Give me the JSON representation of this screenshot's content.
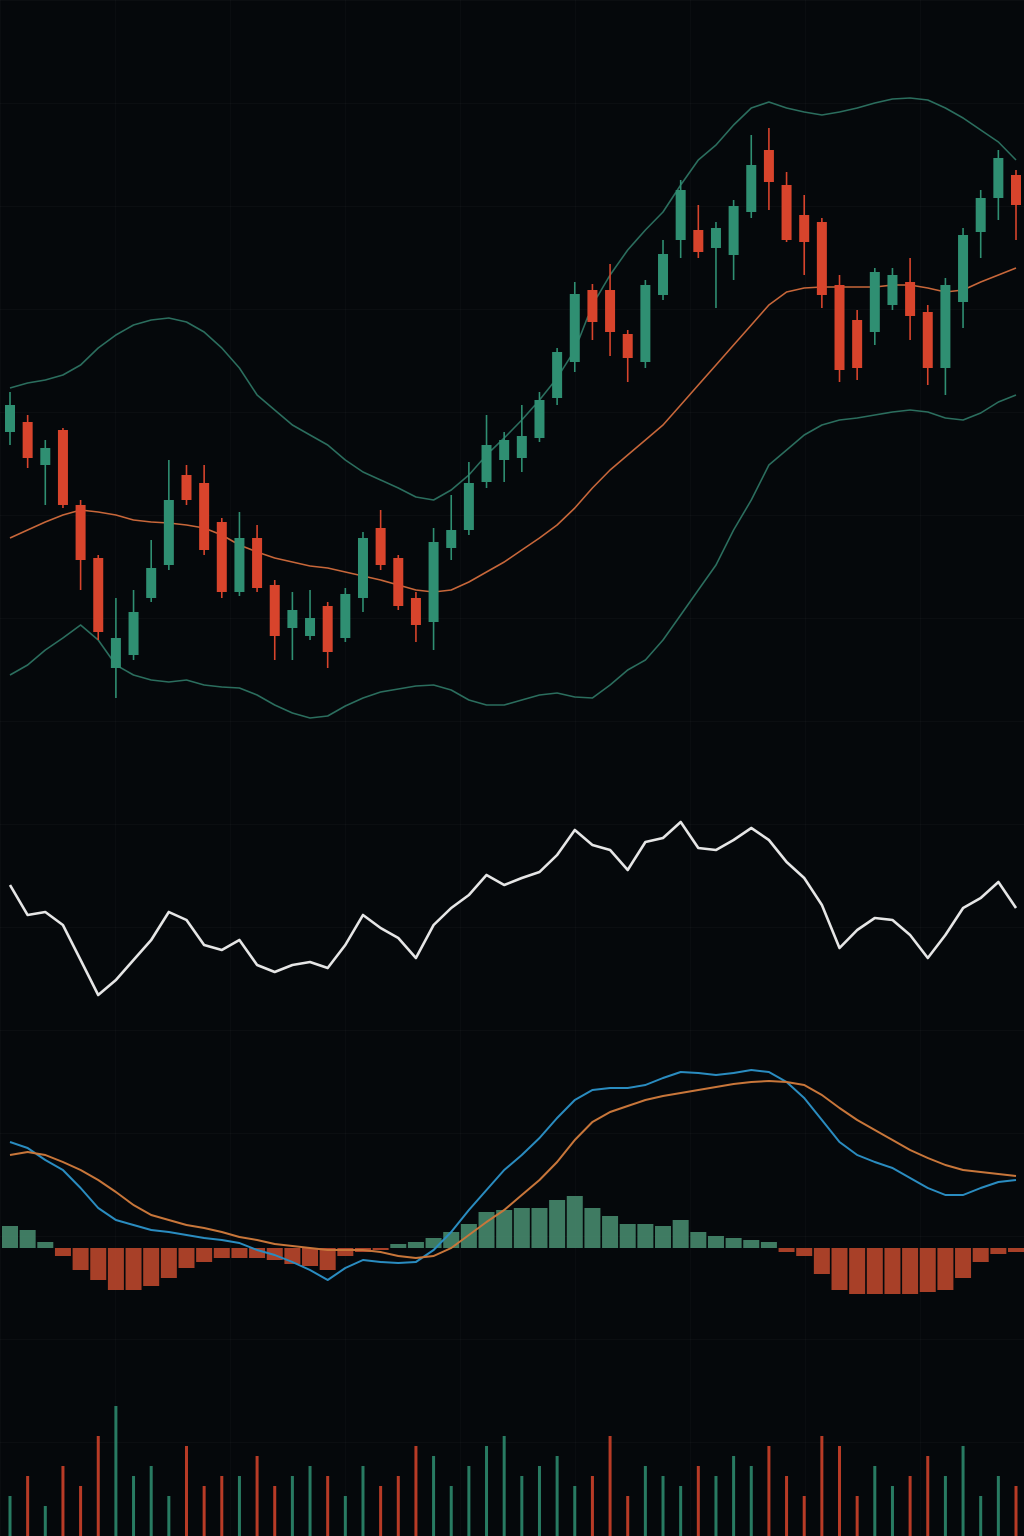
{
  "chart_data": [
    {
      "type": "candlestick",
      "up_color": "#2f8f72",
      "down_color": "#d8442c",
      "ylim": [
        0,
        700
      ],
      "open": [
        328,
        338,
        295,
        330,
        255,
        202,
        92,
        105,
        162,
        195,
        285,
        277,
        238,
        168,
        222,
        175,
        132,
        124,
        154,
        122,
        162,
        232,
        202,
        162,
        138,
        212,
        230,
        278,
        300,
        302,
        322,
        362,
        398,
        470,
        470,
        426,
        398,
        465,
        520,
        530,
        512,
        505,
        548,
        610,
        575,
        545,
        538,
        475,
        440,
        428,
        455,
        478,
        448,
        392,
        458,
        528,
        562,
        585
      ],
      "high": [
        368,
        345,
        320,
        332,
        260,
        205,
        162,
        170,
        220,
        300,
        295,
        295,
        242,
        248,
        235,
        180,
        168,
        170,
        158,
        172,
        228,
        250,
        205,
        168,
        232,
        265,
        298,
        345,
        328,
        355,
        368,
        412,
        478,
        476,
        496,
        430,
        480,
        520,
        580,
        555,
        538,
        560,
        625,
        632,
        588,
        565,
        542,
        485,
        450,
        492,
        492,
        502,
        455,
        482,
        532,
        570,
        610,
        590
      ],
      "low": [
        315,
        292,
        255,
        252,
        170,
        120,
        62,
        100,
        158,
        190,
        255,
        205,
        162,
        164,
        168,
        100,
        100,
        120,
        92,
        118,
        148,
        190,
        150,
        118,
        110,
        200,
        225,
        272,
        278,
        288,
        318,
        355,
        388,
        420,
        404,
        378,
        392,
        460,
        502,
        502,
        452,
        480,
        542,
        550,
        518,
        485,
        452,
        378,
        380,
        415,
        450,
        420,
        375,
        365,
        432,
        502,
        540,
        520
      ],
      "close": [
        355,
        302,
        312,
        255,
        200,
        128,
        122,
        148,
        192,
        260,
        260,
        210,
        168,
        222,
        172,
        124,
        150,
        142,
        108,
        166,
        222,
        195,
        154,
        135,
        218,
        230,
        277,
        315,
        320,
        324,
        360,
        408,
        466,
        438,
        428,
        402,
        475,
        506,
        570,
        508,
        532,
        554,
        595,
        578,
        520,
        518,
        465,
        390,
        392,
        488,
        485,
        444,
        392,
        475,
        525,
        562,
        602,
        555
      ],
      "series": [
        {
          "color": "#2b6e5e",
          "values": [
            372,
            377,
            380,
            385,
            395,
            412,
            425,
            435,
            440,
            442,
            438,
            428,
            412,
            392,
            365,
            350,
            335,
            325,
            315,
            300,
            288,
            280,
            272,
            263,
            260,
            270,
            285,
            305,
            322,
            340,
            360,
            382,
            410,
            455,
            485,
            510,
            530,
            548,
            575,
            600,
            615,
            635,
            652,
            658,
            652,
            648,
            645,
            648,
            652,
            657,
            661,
            662,
            660,
            652,
            642,
            630,
            618,
            600
          ]
        },
        {
          "color": "#c8673a",
          "values": [
            222,
            230,
            238,
            245,
            250,
            248,
            245,
            240,
            238,
            237,
            235,
            232,
            225,
            215,
            208,
            202,
            198,
            194,
            192,
            188,
            184,
            180,
            175,
            170,
            168,
            170,
            178,
            188,
            198,
            210,
            222,
            235,
            252,
            272,
            290,
            305,
            320,
            335,
            355,
            375,
            395,
            415,
            435,
            455,
            468,
            472,
            473,
            473,
            473,
            473,
            475,
            475,
            472,
            468,
            470,
            478,
            485,
            492
          ]
        },
        {
          "color": "#2b6e5e",
          "values": [
            85,
            95,
            110,
            122,
            135,
            120,
            95,
            85,
            80,
            78,
            80,
            75,
            73,
            72,
            65,
            55,
            47,
            42,
            44,
            54,
            62,
            68,
            71,
            74,
            75,
            70,
            60,
            55,
            55,
            60,
            65,
            67,
            63,
            62,
            75,
            90,
            100,
            120,
            145,
            170,
            195,
            230,
            260,
            295,
            310,
            325,
            335,
            340,
            342,
            345,
            348,
            350,
            348,
            342,
            340,
            347,
            358,
            365
          ]
        }
      ]
    },
    {
      "type": "line",
      "ylim": [
        0,
        260
      ],
      "series": [
        {
          "color": "#e6e6e6",
          "values": [
            155,
            125,
            128,
            115,
            80,
            45,
            60,
            80,
            100,
            128,
            120,
            95,
            90,
            100,
            75,
            68,
            75,
            78,
            72,
            95,
            125,
            112,
            102,
            82,
            115,
            132,
            145,
            165,
            155,
            162,
            168,
            185,
            210,
            195,
            190,
            170,
            198,
            202,
            218,
            192,
            190,
            200,
            212,
            200,
            178,
            162,
            135,
            92,
            110,
            122,
            120,
            105,
            82,
            105,
            132,
            142,
            158,
            132
          ]
        }
      ]
    },
    {
      "type": "macd",
      "ylim": [
        -72,
        188
      ],
      "pos_color": "#4a8f72",
      "neg_color": "#c64a2e",
      "values": [
        22,
        18,
        6,
        -8,
        -22,
        -32,
        -42,
        -42,
        -38,
        -30,
        -20,
        -14,
        -10,
        -10,
        -10,
        -12,
        -16,
        -18,
        -22,
        -8,
        -4,
        -2,
        4,
        6,
        10,
        16,
        24,
        36,
        38,
        40,
        40,
        48,
        52,
        40,
        32,
        24,
        24,
        22,
        28,
        16,
        12,
        10,
        8,
        6,
        -4,
        -8,
        -26,
        -42,
        -46,
        -46,
        -46,
        -46,
        -44,
        -42,
        -30,
        -14,
        -6,
        -4
      ],
      "series": [
        {
          "color": "#2a8cc0",
          "values": [
            106,
            100,
            88,
            78,
            60,
            40,
            28,
            23,
            18,
            16,
            13,
            10,
            8,
            5,
            -2,
            -7,
            -14,
            -22,
            -32,
            -20,
            -12,
            -14,
            -15,
            -14,
            -2,
            16,
            38,
            58,
            78,
            93,
            110,
            130,
            148,
            158,
            160,
            160,
            163,
            170,
            176,
            175,
            173,
            175,
            178,
            176,
            166,
            150,
            128,
            106,
            93,
            86,
            80,
            70,
            60,
            53,
            53,
            60,
            66,
            68
          ]
        },
        {
          "color": "#c8763a",
          "values": [
            93,
            96,
            93,
            86,
            78,
            68,
            56,
            43,
            33,
            28,
            23,
            20,
            16,
            11,
            8,
            4,
            2,
            0,
            -2,
            -2,
            -2,
            -4,
            -8,
            -10,
            -8,
            0,
            13,
            26,
            38,
            53,
            68,
            86,
            108,
            126,
            136,
            142,
            148,
            152,
            155,
            158,
            161,
            164,
            166,
            167,
            166,
            163,
            153,
            140,
            128,
            118,
            108,
            98,
            90,
            83,
            78,
            76,
            74,
            72
          ]
        }
      ]
    },
    {
      "type": "volume",
      "ylim": [
        0,
        150
      ],
      "values": [
        40,
        60,
        30,
        70,
        50,
        100,
        130,
        60,
        70,
        40,
        90,
        50,
        60,
        60,
        80,
        50,
        60,
        70,
        60,
        40,
        70,
        50,
        60,
        90,
        80,
        50,
        70,
        90,
        100,
        60,
        70,
        80,
        50,
        60,
        100,
        40,
        70,
        60,
        50,
        70,
        60,
        80,
        70,
        90,
        60,
        40,
        100,
        90,
        40,
        70,
        50,
        60,
        80,
        60,
        90,
        40,
        60,
        50
      ]
    }
  ]
}
